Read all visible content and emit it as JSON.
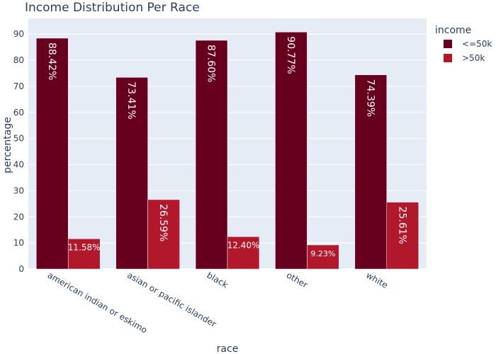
{
  "chart_data": {
    "type": "bar",
    "title": "Income Distribution Per Race",
    "xlabel": "race",
    "ylabel": "percentage",
    "ylim": [
      0,
      96
    ],
    "yticks": [
      0,
      10,
      20,
      30,
      40,
      50,
      60,
      70,
      80,
      90
    ],
    "grid": true,
    "legend_title": "income",
    "legend_position": "top-right",
    "categories": [
      "american indian or eskimo",
      "asian or pacific islander",
      "black",
      "other",
      "white"
    ],
    "series": [
      {
        "name": "<=50k",
        "color": "#67001f",
        "values": [
          88.42,
          73.41,
          87.6,
          90.77,
          74.39
        ],
        "labels": [
          "88.42%",
          "73.41%",
          "87.60%",
          "90.77%",
          "74.39%"
        ]
      },
      {
        "name": ">50k",
        "color": "#b2182b",
        "values": [
          11.58,
          26.59,
          12.4,
          9.23,
          25.61
        ],
        "labels": [
          "11.58%",
          "26.59%",
          "12.40%",
          "9.23%",
          "25.61%"
        ]
      }
    ]
  }
}
